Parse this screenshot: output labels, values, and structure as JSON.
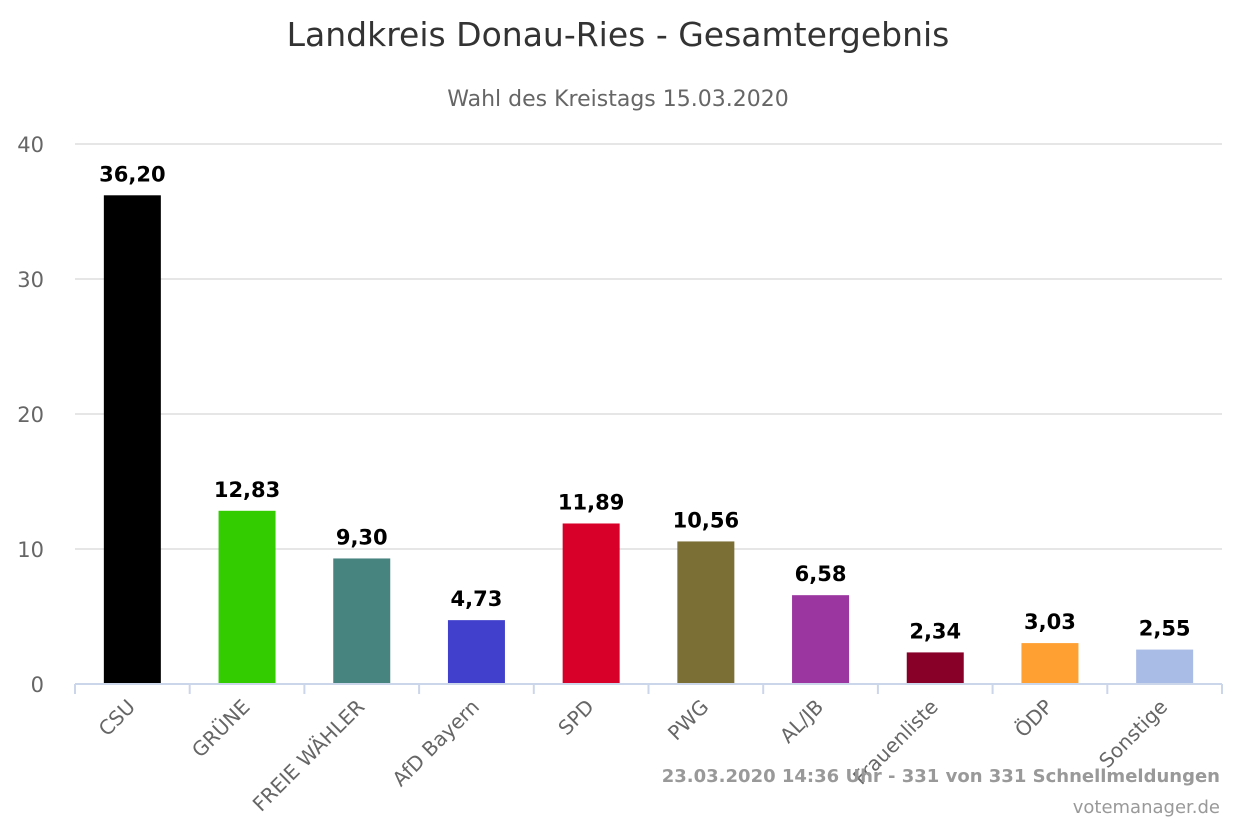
{
  "chart_data": {
    "type": "bar",
    "title": "Landkreis Donau-Ries - Gesamtergebnis",
    "subtitle": "Wahl des Kreistags 15.03.2020",
    "categories": [
      "CSU",
      "GRÜNE",
      "FREIE WÄHLER",
      "AfD Bayern",
      "SPD",
      "PWG",
      "AL/JB",
      "Frauenliste",
      "ÖDP",
      "Sonstige"
    ],
    "values": [
      36.2,
      12.83,
      9.3,
      4.73,
      11.89,
      10.56,
      6.58,
      2.34,
      3.03,
      2.55
    ],
    "value_labels": [
      "36,20",
      "12,83",
      "9,30",
      "4,73",
      "11,89",
      "10,56",
      "6,58",
      "2,34",
      "3,03",
      "2,55"
    ],
    "colors": [
      "#000000",
      "#33cc00",
      "#478480",
      "#4040cc",
      "#d80028",
      "#7b6f36",
      "#9b35a0",
      "#880028",
      "#ffa033",
      "#a8bce6"
    ],
    "ylim": [
      0,
      40
    ],
    "yticks": [
      0,
      10,
      20,
      30,
      40
    ],
    "xlabel": "",
    "ylabel": "",
    "grid": true,
    "legend": "none",
    "credits": {
      "text": "23.03.2020 14:36 Uhr - 331 von 331 Schnellmeldungen",
      "source": "votemanager.de"
    }
  }
}
